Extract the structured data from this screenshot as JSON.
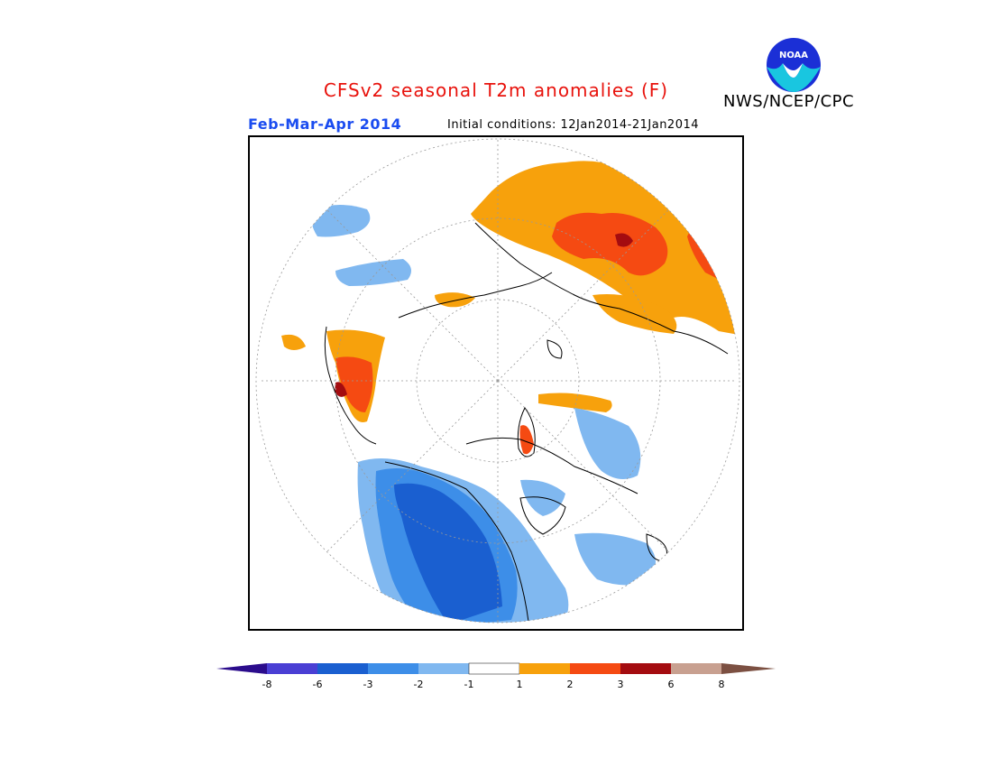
{
  "title": "CFSv2 seasonal T2m anomalies (F)",
  "agency": "NWS/NCEP/CPC",
  "logo_text": "NOAA",
  "season": "Feb-Mar-Apr 2014",
  "initial_conditions": "Initial conditions: 12Jan2014-21Jan2014",
  "colors": {
    "title": "#e8120c",
    "season": "#1a4cf0",
    "bins": [
      "#2b0c8c",
      "#4a3fd4",
      "#1a5fd0",
      "#3d8ee8",
      "#80b8f0",
      "#ffffff",
      "#f7a10c",
      "#f54a12",
      "#a40c10",
      "#c8a090",
      "#7c5042"
    ]
  },
  "colorbar": {
    "tick_labels": [
      "-8",
      "-6",
      "-3",
      "-2",
      "-1",
      "1",
      "2",
      "3",
      "6",
      "8"
    ]
  }
}
